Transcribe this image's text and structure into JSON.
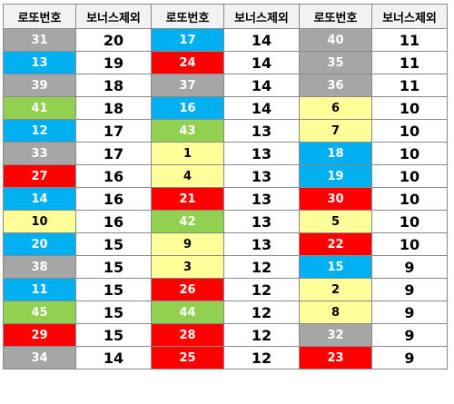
{
  "headers": [
    "로또번호",
    "보너스제외",
    "로또번호",
    "보너스제외",
    "로또번호",
    "보너스제외"
  ],
  "colors": {
    "gray": "#a6a6a6",
    "blue": "#00b0f0",
    "red": "#ff0000",
    "green": "#92d050",
    "yellow": "#ffff99"
  },
  "groups": [
    [
      {
        "num": "31",
        "count": "20",
        "color": "gray"
      },
      {
        "num": "13",
        "count": "19",
        "color": "blue"
      },
      {
        "num": "39",
        "count": "18",
        "color": "gray"
      },
      {
        "num": "41",
        "count": "18",
        "color": "green"
      },
      {
        "num": "12",
        "count": "17",
        "color": "blue"
      },
      {
        "num": "33",
        "count": "17",
        "color": "gray"
      },
      {
        "num": "27",
        "count": "16",
        "color": "red"
      },
      {
        "num": "14",
        "count": "16",
        "color": "blue"
      },
      {
        "num": "10",
        "count": "16",
        "color": "yellow"
      },
      {
        "num": "20",
        "count": "15",
        "color": "blue"
      },
      {
        "num": "38",
        "count": "15",
        "color": "gray"
      },
      {
        "num": "11",
        "count": "15",
        "color": "blue"
      },
      {
        "num": "45",
        "count": "15",
        "color": "green"
      },
      {
        "num": "29",
        "count": "15",
        "color": "red"
      },
      {
        "num": "34",
        "count": "14",
        "color": "gray"
      }
    ],
    [
      {
        "num": "17",
        "count": "14",
        "color": "blue"
      },
      {
        "num": "24",
        "count": "14",
        "color": "red"
      },
      {
        "num": "37",
        "count": "14",
        "color": "gray"
      },
      {
        "num": "16",
        "count": "14",
        "color": "blue"
      },
      {
        "num": "43",
        "count": "13",
        "color": "green"
      },
      {
        "num": "1",
        "count": "13",
        "color": "yellow"
      },
      {
        "num": "4",
        "count": "13",
        "color": "yellow"
      },
      {
        "num": "21",
        "count": "13",
        "color": "red"
      },
      {
        "num": "42",
        "count": "13",
        "color": "green"
      },
      {
        "num": "9",
        "count": "13",
        "color": "yellow"
      },
      {
        "num": "3",
        "count": "12",
        "color": "yellow"
      },
      {
        "num": "26",
        "count": "12",
        "color": "red"
      },
      {
        "num": "44",
        "count": "12",
        "color": "green"
      },
      {
        "num": "28",
        "count": "12",
        "color": "red"
      },
      {
        "num": "25",
        "count": "12",
        "color": "red"
      }
    ],
    [
      {
        "num": "40",
        "count": "11",
        "color": "gray"
      },
      {
        "num": "35",
        "count": "11",
        "color": "gray"
      },
      {
        "num": "36",
        "count": "11",
        "color": "gray"
      },
      {
        "num": "6",
        "count": "10",
        "color": "yellow"
      },
      {
        "num": "7",
        "count": "10",
        "color": "yellow"
      },
      {
        "num": "18",
        "count": "10",
        "color": "blue"
      },
      {
        "num": "19",
        "count": "10",
        "color": "blue"
      },
      {
        "num": "30",
        "count": "10",
        "color": "red"
      },
      {
        "num": "5",
        "count": "10",
        "color": "yellow"
      },
      {
        "num": "22",
        "count": "10",
        "color": "red"
      },
      {
        "num": "15",
        "count": "9",
        "color": "blue"
      },
      {
        "num": "2",
        "count": "9",
        "color": "yellow"
      },
      {
        "num": "8",
        "count": "9",
        "color": "yellow"
      },
      {
        "num": "32",
        "count": "9",
        "color": "gray"
      },
      {
        "num": "23",
        "count": "9",
        "color": "red"
      }
    ]
  ]
}
